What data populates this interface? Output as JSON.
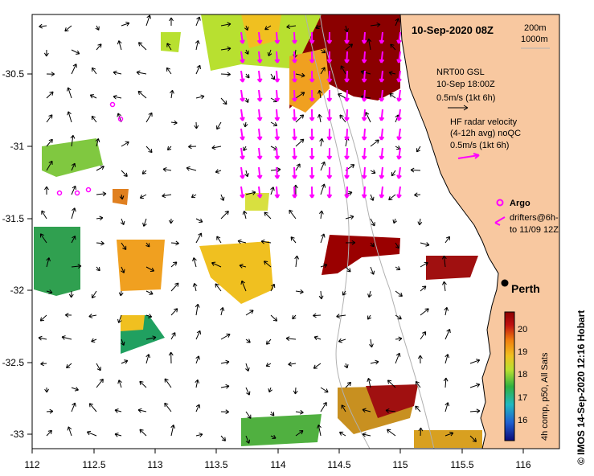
{
  "map": {
    "title": "10-Sep-2020 08Z",
    "depth_labels": [
      "200m",
      "1000m"
    ],
    "lon_ticks": [
      "112",
      "112.5",
      "113",
      "113.5",
      "114",
      "114.5",
      "115",
      "115.5",
      "116"
    ],
    "lat_ticks": [
      "-30.5",
      "-31",
      "-31.5",
      "-32",
      "-32.5",
      "-33"
    ],
    "city": "Perth",
    "land_color": "#f8c8a0",
    "vector_color": "#ff00ff"
  },
  "legend": {
    "gsl_title": "NRT00 GSL",
    "gsl_time": "10-Sep 18:00Z",
    "gsl_scale": "0.5m/s (1kt 6h)",
    "hf_title": "HF radar velocity",
    "hf_avg": "(4-12h avg) noQC",
    "hf_scale": "0.5m/s (1kt 6h)",
    "argo_label": "Argo",
    "drifters_line1": "drifters@6h-",
    "drifters_line2": "to 11/09 12Z"
  },
  "colorbar": {
    "ticks": [
      "20",
      "19",
      "18",
      "17",
      "16"
    ],
    "label": "4h comp, p50, All Sats",
    "colors": [
      "#0a0a7a",
      "#1f5fd0",
      "#20b8c0",
      "#30b040",
      "#b8e030",
      "#f0c020",
      "#f08010",
      "#c01010",
      "#8b0000"
    ]
  },
  "credit": "© IMOS 14-Sep-2020 12:16 Hobart"
}
